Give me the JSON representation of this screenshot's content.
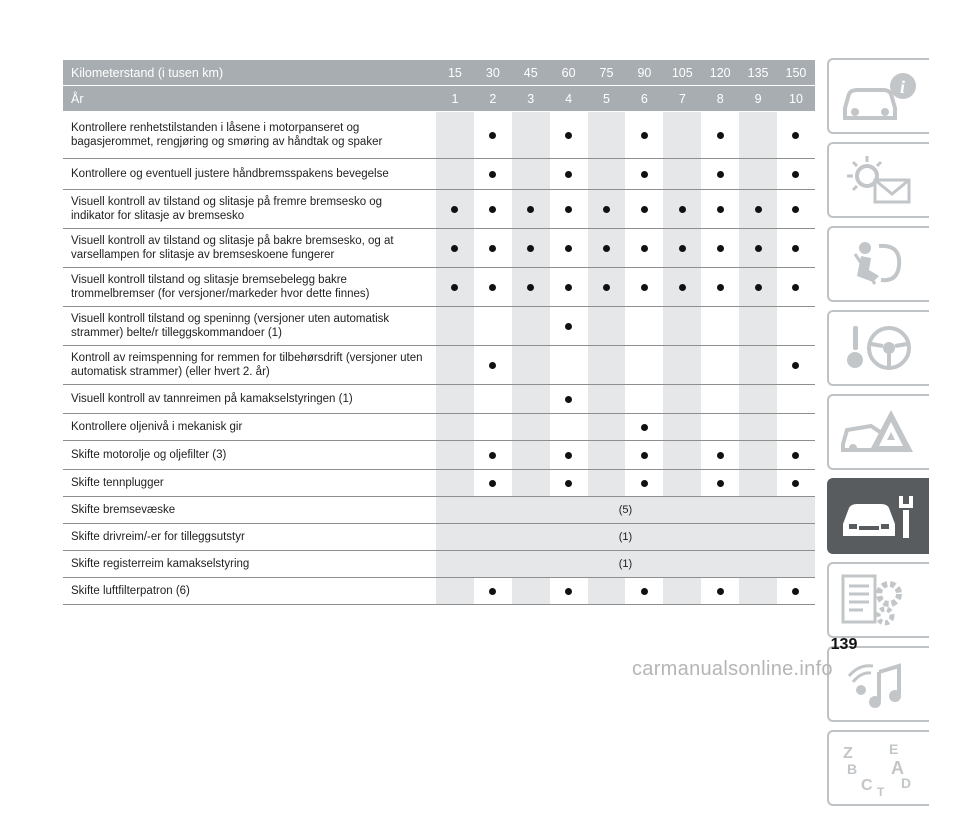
{
  "header": {
    "km_label": "Kilometerstand (i tusen km)",
    "km_values": [
      "15",
      "30",
      "45",
      "60",
      "75",
      "90",
      "105",
      "120",
      "135",
      "150"
    ],
    "year_label": "År",
    "year_values": [
      "1",
      "2",
      "3",
      "4",
      "5",
      "6",
      "7",
      "8",
      "9",
      "10"
    ]
  },
  "rows": [
    {
      "label": "Kontrollere renhetstilstanden i låsene i motorpanseret og bagasjerommet, rengjøring og smøring av håndtak og spaker",
      "dots": [
        false,
        true,
        false,
        true,
        false,
        true,
        false,
        true,
        false,
        true
      ]
    },
    {
      "label": "Kontrollere og eventuell justere håndbremsspakens bevegelse",
      "dots": [
        false,
        true,
        false,
        true,
        false,
        true,
        false,
        true,
        false,
        true
      ]
    },
    {
      "label": "Visuell kontroll av tilstand og slitasje på fremre bremsesko og indikator for slitasje av bremsesko",
      "dots": [
        true,
        true,
        true,
        true,
        true,
        true,
        true,
        true,
        true,
        true
      ]
    },
    {
      "label": "Visuell kontroll av tilstand og slitasje på bakre bremsesko, og at varsellampen for slitasje av bremseskoene fungerer",
      "dots": [
        true,
        true,
        true,
        true,
        true,
        true,
        true,
        true,
        true,
        true
      ]
    },
    {
      "label": "Visuell kontroll tilstand og slitasje bremsebelegg bakre trommelbremser (for versjoner/markeder hvor dette finnes)",
      "dots": [
        true,
        true,
        true,
        true,
        true,
        true,
        true,
        true,
        true,
        true
      ]
    },
    {
      "label": "Visuell kontroll tilstand og speninng (versjoner uten automatisk strammer) belte/r tilleggskommandoer (1)",
      "dots": [
        false,
        false,
        false,
        true,
        false,
        false,
        false,
        false,
        false,
        false
      ]
    },
    {
      "label": "Kontroll av reimspenning for remmen for tilbehørsdrift (versjoner uten automatisk strammer) (eller hvert 2. år)",
      "dots": [
        false,
        true,
        false,
        false,
        false,
        false,
        false,
        false,
        false,
        true
      ]
    },
    {
      "label": "Visuell kontroll av tannreimen på kamakselstyringen (1)",
      "dots": [
        false,
        false,
        false,
        true,
        false,
        false,
        false,
        false,
        false,
        false
      ]
    },
    {
      "label": "Kontrollere oljenivå i mekanisk gir",
      "dots": [
        false,
        false,
        false,
        false,
        false,
        true,
        false,
        false,
        false,
        false
      ]
    },
    {
      "label": "Skifte motorolje og oljefilter (3)",
      "dots": [
        false,
        true,
        false,
        true,
        false,
        true,
        false,
        true,
        false,
        true
      ]
    },
    {
      "label": "Skifte tennplugger",
      "dots": [
        false,
        true,
        false,
        true,
        false,
        true,
        false,
        true,
        false,
        true
      ]
    },
    {
      "label": "Skifte bremsevæske",
      "note": "(5)"
    },
    {
      "label": "Skifte drivreim/-er for tilleggsutstyr",
      "note": "(1)"
    },
    {
      "label": "Skifte registerreim kamakselstyring",
      "note": "(1)"
    },
    {
      "label": "Skifte luftfilterpatron (6)",
      "dots": [
        false,
        true,
        false,
        true,
        false,
        true,
        false,
        true,
        false,
        true
      ]
    }
  ],
  "sidebar": {
    "tabs": [
      {
        "icon": "car-info-icon",
        "active": false
      },
      {
        "icon": "warning-lights-icon",
        "active": false
      },
      {
        "icon": "safety-airbag-icon",
        "active": false
      },
      {
        "icon": "steering-key-icon",
        "active": false
      },
      {
        "icon": "emergency-icon",
        "active": false
      },
      {
        "icon": "car-service-icon",
        "active": true
      },
      {
        "icon": "technical-data-icon",
        "active": false
      },
      {
        "icon": "multimedia-icon",
        "active": false
      },
      {
        "icon": "index-icon",
        "active": false,
        "letters": [
          "Z",
          "E",
          "B",
          "A",
          "C",
          "D",
          "T"
        ]
      }
    ]
  },
  "page_number": "139",
  "watermark": "carmanualsonline.info"
}
